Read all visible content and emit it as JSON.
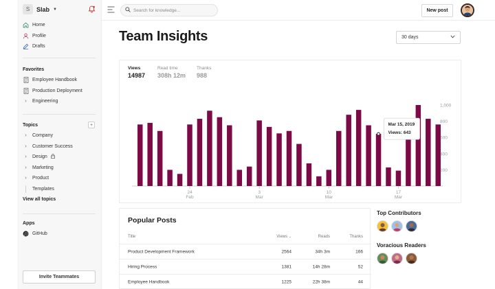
{
  "sidebar": {
    "workspace": {
      "logo_letter": "S",
      "name": "Slab"
    },
    "nav": [
      {
        "label": "Home",
        "icon": "home-icon"
      },
      {
        "label": "Profile",
        "icon": "person-icon"
      },
      {
        "label": "Drafts",
        "icon": "pencil-icon"
      }
    ],
    "favorites_title": "Favorites",
    "favorites": [
      {
        "label": "Employee Handbook",
        "icon": "document-icon"
      },
      {
        "label": "Production Deployment",
        "icon": "document-icon"
      },
      {
        "label": "Engineering",
        "icon": "chevron-right-icon"
      }
    ],
    "topics_title": "Topics",
    "add_topic_glyph": "+",
    "topics": [
      {
        "label": "Company"
      },
      {
        "label": "Customer Success"
      },
      {
        "label": "Design",
        "locked": true
      },
      {
        "label": "Marketing"
      },
      {
        "label": "Product"
      },
      {
        "label": "Templates",
        "child": true
      }
    ],
    "view_all_topics": "View all topics",
    "apps_title": "Apps",
    "apps": [
      {
        "label": "GitHub",
        "icon": "github-icon"
      }
    ],
    "invite_label": "Invite Teammates"
  },
  "topbar": {
    "search_placeholder": "Search for knowledge...",
    "new_post_label": "New post"
  },
  "main": {
    "title": "Team Insights",
    "range": {
      "selected": "30 days"
    },
    "stats": [
      {
        "label": "Views",
        "value": "14987",
        "active": true
      },
      {
        "label": "Read time",
        "value": "308h 12m",
        "active": false
      },
      {
        "label": "Thanks",
        "value": "988",
        "active": false
      }
    ],
    "tooltip": {
      "date": "Mar 15, 2019",
      "label": "Views:",
      "value": "643"
    },
    "popular": {
      "title": "Popular Posts",
      "columns": [
        "Title",
        "Views",
        "Reads",
        "Thanks"
      ],
      "rows": [
        {
          "title": "Product Development Framework",
          "views": "2564",
          "reads": "34h 3m",
          "thanks": "166"
        },
        {
          "title": "Hiring Process",
          "views": "1381",
          "reads": "14h 28m",
          "thanks": "52"
        },
        {
          "title": "Employee Handbook",
          "views": "1225",
          "reads": "22h 38m",
          "thanks": "44"
        }
      ]
    },
    "top_contributors_title": "Top Contributors",
    "voracious_readers_title": "Voracious Readers"
  },
  "colors": {
    "bar": "#7c0a46",
    "axis": "#cfcfcf",
    "tick_text": "#9a9a9a"
  },
  "chart_data": {
    "type": "bar",
    "title": "Views",
    "series": [
      {
        "name": "Views",
        "values": [
          760,
          780,
          680,
          200,
          150,
          760,
          830,
          930,
          850,
          750,
          200,
          240,
          810,
          730,
          650,
          680,
          520,
          280,
          120,
          200,
          680,
          880,
          940,
          750,
          643,
          230,
          190,
          780,
          1000,
          830,
          760
        ]
      }
    ],
    "x_tick_labels": [
      {
        "index": 5,
        "day": "24",
        "month": "Feb"
      },
      {
        "index": 12,
        "day": "3",
        "month": "Mar"
      },
      {
        "index": 19,
        "day": "10",
        "month": "Mar"
      },
      {
        "index": 26,
        "day": "17",
        "month": "Mar"
      }
    ],
    "y_ticks": [
      "200",
      "400",
      "600",
      "800",
      "1,000"
    ],
    "ylim": [
      0,
      1000
    ],
    "highlight_index": 24
  }
}
